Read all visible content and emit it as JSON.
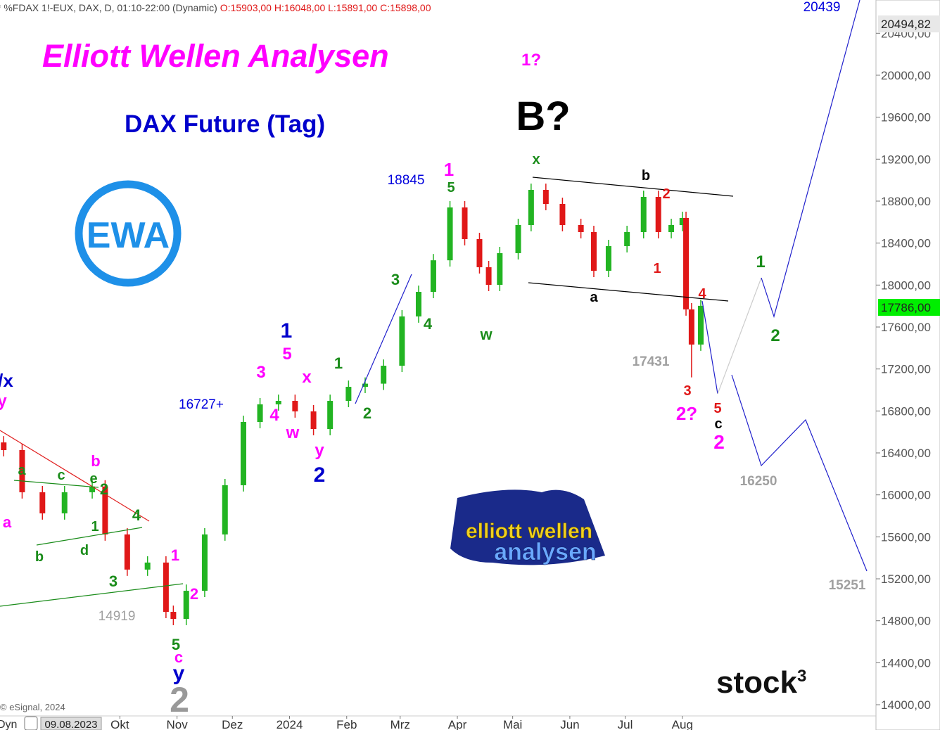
{
  "chart_data": {
    "type": "candlestick",
    "title": "Elliott Wellen Analysen",
    "subtitle": "DAX Future (Tag)",
    "header": {
      "symbol": "* %FDAX 1!-EUX, DAX, D, 01:10-22:00 (Dynamic)",
      "ohlc": "O:15903,00 H:16048,00 L:15891,00 C:15898,00"
    },
    "credit": "© eSignal, 2024",
    "x": [
      -10,
      0,
      11,
      23,
      38,
      45,
      57,
      68,
      78,
      82,
      89,
      99,
      110,
      120,
      129,
      139,
      148,
      158,
      167,
      177,
      186,
      196,
      206,
      215,
      223,
      232,
      240,
      248,
      253,
      259,
      269,
      276,
      284,
      293,
      303,
      310,
      318,
      328,
      337,
      345,
      352,
      358,
      360,
      363,
      368
    ],
    "open": [
      16500,
      16427,
      16025,
      15824,
      16025,
      16080,
      15623,
      15288,
      15355,
      14885,
      14818,
      15086,
      15623,
      16092,
      16695,
      16863,
      16896,
      16796,
      16628,
      16896,
      17030,
      17060,
      17231,
      17701,
      17935,
      18236,
      18740,
      18438,
      18170,
      18002,
      18304,
      18572,
      18907,
      18773,
      18572,
      18505,
      18136,
      18371,
      18505,
      18840,
      18505,
      18572,
      18639,
      17768,
      17433
    ],
    "high": [
      16560,
      16487,
      16085,
      16085,
      16140,
      16140,
      15683,
      15415,
      15415,
      14945,
      15146,
      15683,
      16152,
      16755,
      16923,
      16956,
      16956,
      16856,
      16956,
      17090,
      17120,
      17291,
      17761,
      17995,
      18296,
      18800,
      18800,
      18498,
      18230,
      18364,
      18632,
      18967,
      18967,
      18833,
      18632,
      18565,
      18431,
      18565,
      18900,
      18900,
      18632,
      18699,
      18699,
      17828,
      17862
    ],
    "low": [
      16367,
      15965,
      15764,
      15764,
      15965,
      15563,
      15228,
      15228,
      14825,
      14758,
      14758,
      15026,
      15563,
      16032,
      16635,
      16803,
      16736,
      16568,
      16568,
      16836,
      16970,
      17000,
      17171,
      17641,
      17875,
      18176,
      18378,
      18110,
      17942,
      17942,
      18244,
      18512,
      18713,
      18512,
      18445,
      18076,
      18076,
      18311,
      18445,
      18445,
      18445,
      18512,
      17708,
      17120,
      17373
    ],
    "close": [
      16427,
      16025,
      15824,
      16025,
      16080,
      15623,
      15288,
      15355,
      14885,
      14818,
      15086,
      15623,
      16092,
      16695,
      16863,
      16896,
      16796,
      16628,
      16896,
      17030,
      17060,
      17231,
      17701,
      17935,
      18236,
      18740,
      18438,
      18170,
      18002,
      18304,
      18572,
      18907,
      18773,
      18572,
      18505,
      18136,
      18371,
      18505,
      18840,
      18505,
      18572,
      18639,
      17768,
      17433,
      17802
    ],
    "up_color": "#22b422",
    "down_color": "#e01818",
    "xlim": [
      -12,
      463
    ],
    "xticks": [
      {
        "value": 53,
        "label": "Okt"
      },
      {
        "value": 84,
        "label": "Nov"
      },
      {
        "value": 114,
        "label": "Dez"
      },
      {
        "value": 145,
        "label": "2024"
      },
      {
        "value": 176,
        "label": "Feb"
      },
      {
        "value": 205,
        "label": "Mrz"
      },
      {
        "value": 236,
        "label": "Apr"
      },
      {
        "value": 266,
        "label": "Mai"
      },
      {
        "value": 297,
        "label": "Jun"
      },
      {
        "value": 327,
        "label": "Jul"
      },
      {
        "value": 358,
        "label": "Aug"
      }
    ],
    "ylim": [
      13759,
      20717
    ],
    "yticks": [
      {
        "value": 14000,
        "label": "14000,00"
      },
      {
        "value": 14400,
        "label": "14400,00"
      },
      {
        "value": 14800,
        "label": "14800,00"
      },
      {
        "value": 15200,
        "label": "15200,00"
      },
      {
        "value": 15600,
        "label": "15600,00"
      },
      {
        "value": 16000,
        "label": "16000,00"
      },
      {
        "value": 16400,
        "label": "16400,00"
      },
      {
        "value": 16800,
        "label": "16800,00"
      },
      {
        "value": 17200,
        "label": "17200,00"
      },
      {
        "value": 17600,
        "label": "17600,00"
      },
      {
        "value": 18000,
        "label": "18000,00"
      },
      {
        "value": 18400,
        "label": "18400,00"
      },
      {
        "value": 18800,
        "label": "18800,00"
      },
      {
        "value": 19200,
        "label": "19200,00"
      },
      {
        "value": 19600,
        "label": "19600,00"
      },
      {
        "value": 20000,
        "label": "20000,00"
      },
      {
        "value": 20400,
        "label": "20400,00"
      }
    ],
    "price_boxes": [
      {
        "text": "20494,82",
        "color": "#e8e8e8"
      },
      {
        "text": "17786,00",
        "color": "#00ee00"
      }
    ],
    "axis_footer": {
      "mode": "Dyn",
      "date": "09.08.2023"
    },
    "annotations": [
      {
        "text": "1?",
        "color": "#ff00ff"
      },
      {
        "text": "B?",
        "color": "#000000"
      },
      {
        "text": "20439",
        "color": "#0000dd"
      },
      {
        "text": "18845",
        "color": "#0000dd"
      },
      {
        "text": "16727+",
        "color": "#0000dd"
      },
      {
        "text": "17431",
        "color": "#a0a0a0"
      },
      {
        "text": "14919",
        "color": "#a0a0a0"
      },
      {
        "text": "16250",
        "color": "#a0a0a0"
      },
      {
        "text": "15251",
        "color": "#a0a0a0"
      },
      {
        "text": "1",
        "color": "#ff00ff"
      },
      {
        "text": "3",
        "color": "#ff00ff"
      },
      {
        "text": "5",
        "color": "#ff00ff"
      },
      {
        "text": "x",
        "color": "#ff00ff"
      },
      {
        "text": "4",
        "color": "#ff00ff"
      },
      {
        "text": "w",
        "color": "#ff00ff"
      },
      {
        "text": "y",
        "color": "#ff00ff"
      },
      {
        "text": "b",
        "color": "#ff00ff"
      },
      {
        "text": "a",
        "color": "#ff00ff"
      },
      {
        "text": "1",
        "color": "#ff00ff"
      },
      {
        "text": "2",
        "color": "#ff00ff"
      },
      {
        "text": "c",
        "color": "#ff00ff"
      },
      {
        "text": "2?",
        "color": "#ff00ff"
      },
      {
        "text": "2",
        "color": "#ff00ff"
      },
      {
        "text": "y",
        "color": "#ff00ff"
      },
      {
        "text": "1",
        "color": "#0000cc"
      },
      {
        "text": "2",
        "color": "#0000cc"
      },
      {
        "text": "y",
        "color": "#0000cc"
      },
      {
        "text": "/x",
        "color": "#0000cc"
      },
      {
        "text": "5",
        "color": "#1a8c1a"
      },
      {
        "text": "x",
        "color": "#1a8c1a"
      },
      {
        "text": "3",
        "color": "#1a8c1a"
      },
      {
        "text": "4",
        "color": "#1a8c1a"
      },
      {
        "text": "w",
        "color": "#1a8c1a"
      },
      {
        "text": "1",
        "color": "#1a8c1a"
      },
      {
        "text": "2",
        "color": "#1a8c1a"
      },
      {
        "text": "a",
        "color": "#1a8c1a"
      },
      {
        "text": "c",
        "color": "#1a8c1a"
      },
      {
        "text": "e",
        "color": "#1a8c1a"
      },
      {
        "text": "2",
        "color": "#1a8c1a"
      },
      {
        "text": "4",
        "color": "#1a8c1a"
      },
      {
        "text": "1",
        "color": "#1a8c1a"
      },
      {
        "text": "b",
        "color": "#1a8c1a"
      },
      {
        "text": "d",
        "color": "#1a8c1a"
      },
      {
        "text": "3",
        "color": "#1a8c1a"
      },
      {
        "text": "5",
        "color": "#1a8c1a"
      },
      {
        "text": "1",
        "color": "#1a8c1a"
      },
      {
        "text": "2",
        "color": "#1a8c1a"
      },
      {
        "text": "2",
        "color": "#e01818"
      },
      {
        "text": "1",
        "color": "#e01818"
      },
      {
        "text": "4",
        "color": "#e01818"
      },
      {
        "text": "3",
        "color": "#e01818"
      },
      {
        "text": "5",
        "color": "#e01818"
      },
      {
        "text": "b",
        "color": "#000000"
      },
      {
        "text": "a",
        "color": "#000000"
      },
      {
        "text": "c",
        "color": "#000000"
      },
      {
        "text": "2",
        "color": "#999999"
      }
    ],
    "logos": {
      "ewa": "EWA",
      "brand_top": "elliott wellen",
      "brand_bottom": "analysen",
      "stock": "stock",
      "stock_sup": "3"
    }
  }
}
